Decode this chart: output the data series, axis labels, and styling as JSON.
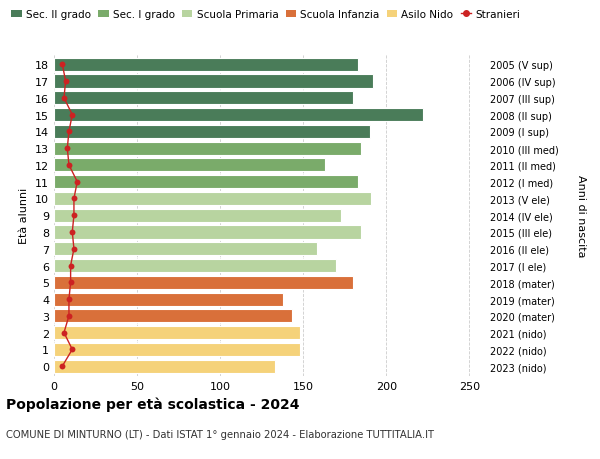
{
  "ages": [
    18,
    17,
    16,
    15,
    14,
    13,
    12,
    11,
    10,
    9,
    8,
    7,
    6,
    5,
    4,
    3,
    2,
    1,
    0
  ],
  "right_labels": [
    "2005 (V sup)",
    "2006 (IV sup)",
    "2007 (III sup)",
    "2008 (II sup)",
    "2009 (I sup)",
    "2010 (III med)",
    "2011 (II med)",
    "2012 (I med)",
    "2013 (V ele)",
    "2014 (IV ele)",
    "2015 (III ele)",
    "2016 (II ele)",
    "2017 (I ele)",
    "2018 (mater)",
    "2019 (mater)",
    "2020 (mater)",
    "2021 (nido)",
    "2022 (nido)",
    "2023 (nido)"
  ],
  "bar_values": [
    183,
    192,
    180,
    222,
    190,
    185,
    163,
    183,
    191,
    173,
    185,
    158,
    170,
    180,
    138,
    143,
    148,
    148,
    133
  ],
  "stranieri_values": [
    5,
    7,
    6,
    11,
    9,
    8,
    9,
    14,
    12,
    12,
    11,
    12,
    10,
    10,
    9,
    9,
    6,
    11,
    5
  ],
  "bar_colors": [
    "#4a7c59",
    "#4a7c59",
    "#4a7c59",
    "#4a7c59",
    "#4a7c59",
    "#7aab6a",
    "#7aab6a",
    "#7aab6a",
    "#b8d4a0",
    "#b8d4a0",
    "#b8d4a0",
    "#b8d4a0",
    "#b8d4a0",
    "#d9703a",
    "#d9703a",
    "#d9703a",
    "#f5d27a",
    "#f5d27a",
    "#f5d27a"
  ],
  "legend_labels": [
    "Sec. II grado",
    "Sec. I grado",
    "Scuola Primaria",
    "Scuola Infanzia",
    "Asilo Nido",
    "Stranieri"
  ],
  "legend_colors": [
    "#4a7c59",
    "#7aab6a",
    "#b8d4a0",
    "#d9703a",
    "#f5d27a",
    "#cc2222"
  ],
  "title": "Popolazione per età scolastica - 2024",
  "subtitle": "COMUNE DI MINTURNO (LT) - Dati ISTAT 1° gennaio 2024 - Elaborazione TUTTITALIA.IT",
  "ylabel_left": "Età alunni",
  "ylabel_right": "Anni di nascita",
  "xlim": [
    0,
    260
  ],
  "xticks": [
    0,
    50,
    100,
    150,
    200,
    250
  ],
  "background_color": "#ffffff",
  "grid_color": "#cccccc",
  "bar_height": 0.78,
  "stranieri_color": "#cc2222"
}
